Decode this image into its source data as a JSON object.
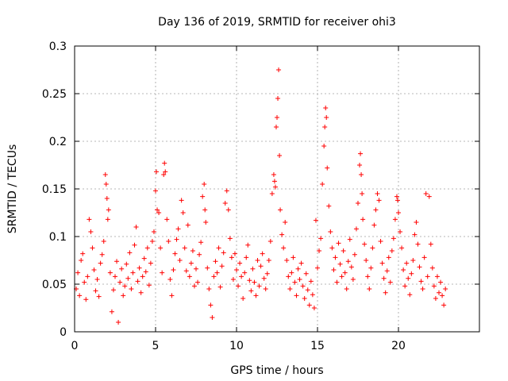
{
  "chart_data": {
    "type": "scatter",
    "title": "Day 136 of 2019, SRMTID for receiver ohi3",
    "xlabel": "GPS time / hours",
    "ylabel": "SRMTID / TECUs",
    "xlim": [
      0,
      25
    ],
    "ylim": [
      0,
      0.3
    ],
    "xticks": [
      0,
      5,
      10,
      15,
      20
    ],
    "xtick_labels": [
      "0",
      "5",
      "10",
      "15",
      "20"
    ],
    "yticks": [
      0,
      0.05,
      0.1,
      0.15,
      0.2,
      0.25,
      0.3
    ],
    "ytick_labels": [
      "0",
      "0.05",
      "0.1",
      "0.15",
      "0.2",
      "0.25",
      "0.3"
    ],
    "grid": true,
    "marker": "+",
    "color": "#ff0000",
    "series": [
      {
        "name": "SRMTID",
        "points": [
          [
            0.1,
            0.045
          ],
          [
            0.2,
            0.062
          ],
          [
            0.3,
            0.038
          ],
          [
            0.4,
            0.075
          ],
          [
            0.5,
            0.082
          ],
          [
            0.6,
            0.052
          ],
          [
            0.7,
            0.034
          ],
          [
            0.8,
            0.058
          ],
          [
            0.9,
            0.118
          ],
          [
            1.0,
            0.105
          ],
          [
            1.1,
            0.088
          ],
          [
            1.2,
            0.065
          ],
          [
            1.3,
            0.043
          ],
          [
            1.4,
            0.055
          ],
          [
            1.5,
            0.037
          ],
          [
            1.6,
            0.072
          ],
          [
            1.7,
            0.081
          ],
          [
            1.8,
            0.095
          ],
          [
            1.9,
            0.165
          ],
          [
            1.95,
            0.155
          ],
          [
            2.0,
            0.14
          ],
          [
            2.05,
            0.118
          ],
          [
            2.1,
            0.128
          ],
          [
            2.2,
            0.062
          ],
          [
            2.3,
            0.021
          ],
          [
            2.4,
            0.044
          ],
          [
            2.5,
            0.058
          ],
          [
            2.6,
            0.074
          ],
          [
            2.7,
            0.01
          ],
          [
            2.8,
            0.052
          ],
          [
            2.9,
            0.066
          ],
          [
            3.0,
            0.038
          ],
          [
            3.1,
            0.048
          ],
          [
            3.2,
            0.071
          ],
          [
            3.3,
            0.056
          ],
          [
            3.4,
            0.083
          ],
          [
            3.5,
            0.045
          ],
          [
            3.6,
            0.062
          ],
          [
            3.7,
            0.091
          ],
          [
            3.8,
            0.11
          ],
          [
            3.9,
            0.053
          ],
          [
            4.0,
            0.067
          ],
          [
            4.1,
            0.041
          ],
          [
            4.2,
            0.058
          ],
          [
            4.3,
            0.077
          ],
          [
            4.4,
            0.063
          ],
          [
            4.5,
            0.088
          ],
          [
            4.6,
            0.049
          ],
          [
            4.7,
            0.072
          ],
          [
            4.8,
            0.095
          ],
          [
            4.9,
            0.105
          ],
          [
            5.0,
            0.148
          ],
          [
            5.05,
            0.168
          ],
          [
            5.1,
            0.128
          ],
          [
            5.2,
            0.125
          ],
          [
            5.3,
            0.088
          ],
          [
            5.4,
            0.062
          ],
          [
            5.5,
            0.165
          ],
          [
            5.55,
            0.177
          ],
          [
            5.6,
            0.168
          ],
          [
            5.7,
            0.118
          ],
          [
            5.8,
            0.095
          ],
          [
            5.9,
            0.055
          ],
          [
            6.0,
            0.038
          ],
          [
            6.1,
            0.065
          ],
          [
            6.2,
            0.082
          ],
          [
            6.3,
            0.097
          ],
          [
            6.4,
            0.108
          ],
          [
            6.5,
            0.075
          ],
          [
            6.6,
            0.138
          ],
          [
            6.7,
            0.125
          ],
          [
            6.8,
            0.088
          ],
          [
            6.9,
            0.064
          ],
          [
            7.0,
            0.112
          ],
          [
            7.1,
            0.058
          ],
          [
            7.2,
            0.072
          ],
          [
            7.3,
            0.085
          ],
          [
            7.4,
            0.048
          ],
          [
            7.5,
            0.066
          ],
          [
            7.6,
            0.052
          ],
          [
            7.7,
            0.081
          ],
          [
            7.8,
            0.094
          ],
          [
            7.9,
            0.142
          ],
          [
            8.0,
            0.155
          ],
          [
            8.05,
            0.128
          ],
          [
            8.1,
            0.115
          ],
          [
            8.2,
            0.067
          ],
          [
            8.3,
            0.045
          ],
          [
            8.4,
            0.028
          ],
          [
            8.5,
            0.015
          ],
          [
            8.6,
            0.058
          ],
          [
            8.7,
            0.074
          ],
          [
            8.8,
            0.062
          ],
          [
            8.9,
            0.088
          ],
          [
            9.0,
            0.047
          ],
          [
            9.1,
            0.069
          ],
          [
            9.2,
            0.083
          ],
          [
            9.3,
            0.135
          ],
          [
            9.4,
            0.148
          ],
          [
            9.5,
            0.128
          ],
          [
            9.6,
            0.098
          ],
          [
            9.7,
            0.078
          ],
          [
            9.8,
            0.055
          ],
          [
            9.9,
            0.082
          ],
          [
            10.0,
            0.065
          ],
          [
            10.1,
            0.048
          ],
          [
            10.2,
            0.072
          ],
          [
            10.3,
            0.058
          ],
          [
            10.4,
            0.035
          ],
          [
            10.5,
            0.062
          ],
          [
            10.6,
            0.078
          ],
          [
            10.7,
            0.091
          ],
          [
            10.8,
            0.054
          ],
          [
            10.9,
            0.043
          ],
          [
            11.0,
            0.066
          ],
          [
            11.1,
            0.052
          ],
          [
            11.2,
            0.038
          ],
          [
            11.3,
            0.075
          ],
          [
            11.4,
            0.048
          ],
          [
            11.5,
            0.069
          ],
          [
            11.6,
            0.082
          ],
          [
            11.7,
            0.056
          ],
          [
            11.8,
            0.045
          ],
          [
            11.9,
            0.061
          ],
          [
            12.0,
            0.075
          ],
          [
            12.1,
            0.095
          ],
          [
            12.2,
            0.145
          ],
          [
            12.3,
            0.165
          ],
          [
            12.35,
            0.158
          ],
          [
            12.4,
            0.152
          ],
          [
            12.45,
            0.215
          ],
          [
            12.5,
            0.225
          ],
          [
            12.55,
            0.245
          ],
          [
            12.6,
            0.275
          ],
          [
            12.65,
            0.185
          ],
          [
            12.7,
            0.128
          ],
          [
            12.8,
            0.102
          ],
          [
            12.9,
            0.088
          ],
          [
            13.0,
            0.115
          ],
          [
            13.1,
            0.075
          ],
          [
            13.2,
            0.058
          ],
          [
            13.3,
            0.045
          ],
          [
            13.4,
            0.062
          ],
          [
            13.5,
            0.078
          ],
          [
            13.6,
            0.052
          ],
          [
            13.7,
            0.038
          ],
          [
            13.8,
            0.066
          ],
          [
            13.9,
            0.055
          ],
          [
            14.0,
            0.072
          ],
          [
            14.1,
            0.048
          ],
          [
            14.2,
            0.035
          ],
          [
            14.3,
            0.061
          ],
          [
            14.4,
            0.044
          ],
          [
            14.5,
            0.028
          ],
          [
            14.6,
            0.053
          ],
          [
            14.7,
            0.039
          ],
          [
            14.8,
            0.025
          ],
          [
            14.9,
            0.117
          ],
          [
            15.0,
            0.067
          ],
          [
            15.1,
            0.085
          ],
          [
            15.2,
            0.098
          ],
          [
            15.3,
            0.155
          ],
          [
            15.4,
            0.195
          ],
          [
            15.45,
            0.215
          ],
          [
            15.5,
            0.235
          ],
          [
            15.55,
            0.225
          ],
          [
            15.6,
            0.172
          ],
          [
            15.7,
            0.132
          ],
          [
            15.8,
            0.105
          ],
          [
            15.9,
            0.088
          ],
          [
            16.0,
            0.065
          ],
          [
            16.1,
            0.078
          ],
          [
            16.2,
            0.052
          ],
          [
            16.3,
            0.093
          ],
          [
            16.4,
            0.071
          ],
          [
            16.5,
            0.058
          ],
          [
            16.6,
            0.085
          ],
          [
            16.7,
            0.062
          ],
          [
            16.8,
            0.045
          ],
          [
            16.9,
            0.074
          ],
          [
            17.0,
            0.097
          ],
          [
            17.1,
            0.068
          ],
          [
            17.2,
            0.055
          ],
          [
            17.3,
            0.081
          ],
          [
            17.4,
            0.108
          ],
          [
            17.5,
            0.135
          ],
          [
            17.6,
            0.175
          ],
          [
            17.65,
            0.187
          ],
          [
            17.7,
            0.165
          ],
          [
            17.75,
            0.145
          ],
          [
            17.8,
            0.118
          ],
          [
            17.9,
            0.092
          ],
          [
            18.0,
            0.075
          ],
          [
            18.1,
            0.058
          ],
          [
            18.2,
            0.045
          ],
          [
            18.3,
            0.067
          ],
          [
            18.4,
            0.088
          ],
          [
            18.5,
            0.112
          ],
          [
            18.6,
            0.128
          ],
          [
            18.7,
            0.145
          ],
          [
            18.8,
            0.138
          ],
          [
            18.9,
            0.095
          ],
          [
            19.0,
            0.072
          ],
          [
            19.1,
            0.056
          ],
          [
            19.2,
            0.041
          ],
          [
            19.3,
            0.064
          ],
          [
            19.4,
            0.078
          ],
          [
            19.5,
            0.052
          ],
          [
            19.6,
            0.085
          ],
          [
            19.7,
            0.098
          ],
          [
            19.8,
            0.118
          ],
          [
            19.9,
            0.142
          ],
          [
            19.95,
            0.138
          ],
          [
            20.0,
            0.125
          ],
          [
            20.1,
            0.105
          ],
          [
            20.2,
            0.088
          ],
          [
            20.3,
            0.065
          ],
          [
            20.4,
            0.048
          ],
          [
            20.5,
            0.072
          ],
          [
            20.6,
            0.056
          ],
          [
            20.7,
            0.039
          ],
          [
            20.8,
            0.061
          ],
          [
            20.9,
            0.075
          ],
          [
            21.0,
            0.102
          ],
          [
            21.1,
            0.115
          ],
          [
            21.2,
            0.092
          ],
          [
            21.3,
            0.068
          ],
          [
            21.4,
            0.053
          ],
          [
            21.5,
            0.045
          ],
          [
            21.6,
            0.078
          ],
          [
            21.7,
            0.145
          ],
          [
            21.8,
            0.058
          ],
          [
            21.9,
            0.142
          ],
          [
            22.0,
            0.092
          ],
          [
            22.1,
            0.067
          ],
          [
            22.2,
            0.048
          ],
          [
            22.3,
            0.035
          ],
          [
            22.4,
            0.058
          ],
          [
            22.5,
            0.041
          ],
          [
            22.6,
            0.052
          ],
          [
            22.7,
            0.038
          ],
          [
            22.8,
            0.028
          ],
          [
            22.9,
            0.045
          ]
        ]
      }
    ]
  }
}
